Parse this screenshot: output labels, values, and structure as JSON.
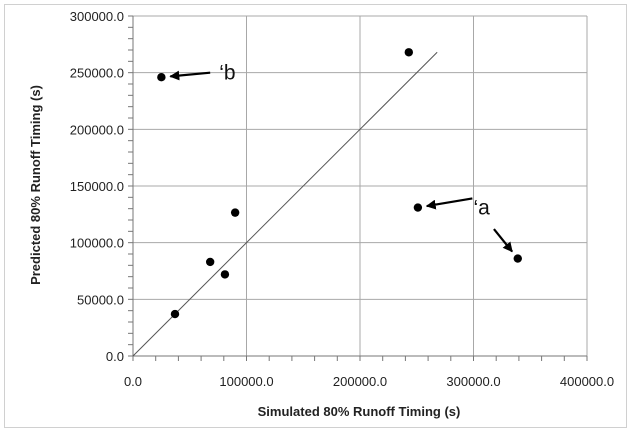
{
  "chart_data": {
    "type": "scatter",
    "xlabel": "Simulated 80% Runoff Timing (s)",
    "ylabel": "Predicted 80% Runoff Timing (s)",
    "xlim": [
      0,
      400000
    ],
    "ylim": [
      0,
      300000
    ],
    "x_ticks": [
      "0.0",
      "100000.0",
      "200000.0",
      "300000.0",
      "400000.0"
    ],
    "y_ticks": [
      "0.0",
      "50000.0",
      "100000.0",
      "150000.0",
      "200000.0",
      "250000.0",
      "300000.0"
    ],
    "grid": true,
    "points": [
      {
        "x": 25000,
        "y": 246000
      },
      {
        "x": 37000,
        "y": 37000
      },
      {
        "x": 68000,
        "y": 83000
      },
      {
        "x": 81000,
        "y": 72000
      },
      {
        "x": 90000,
        "y": 126500
      },
      {
        "x": 243000,
        "y": 268000
      },
      {
        "x": 251000,
        "y": 131000
      },
      {
        "x": 339000,
        "y": 86000
      }
    ],
    "reference_line": {
      "x": [
        0,
        268000
      ],
      "y": [
        0,
        268000
      ]
    },
    "annotations": [
      {
        "text": "‘b",
        "target_point": 0,
        "tail": {
          "x": 68000,
          "y": 250000
        },
        "label_at": {
          "x": 76000,
          "y": 250000
        }
      },
      {
        "text": "‘a",
        "target_point": 6,
        "tail": {
          "x": 299000,
          "y": 139000
        },
        "label_at": {
          "x": 300000,
          "y": 131000
        }
      },
      {
        "text": "",
        "target_point": 7,
        "tail": {
          "x": 318000,
          "y": 112000
        }
      }
    ]
  }
}
